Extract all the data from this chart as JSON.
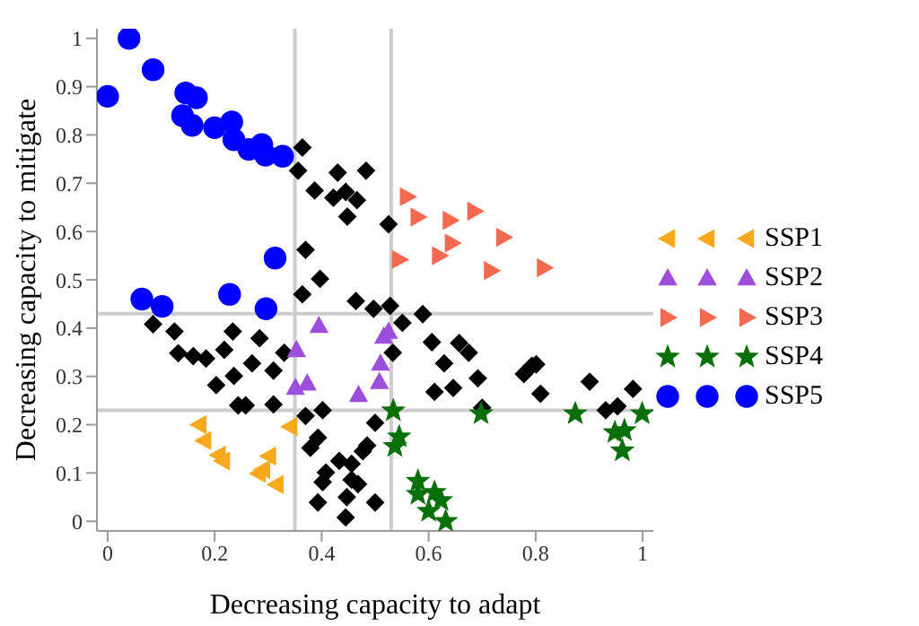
{
  "chart_data": {
    "type": "scatter",
    "xlabel": "Decreasing capacity to adapt",
    "ylabel": "Decreasing capacity to mitigate",
    "xlim": [
      -0.02,
      1.02
    ],
    "ylim": [
      -0.02,
      1.02
    ],
    "xticks": [
      0,
      0.2,
      0.4,
      0.6,
      0.8,
      1
    ],
    "yticks": [
      0,
      0.1,
      0.2,
      0.3,
      0.4,
      0.5,
      0.6,
      0.7,
      0.8,
      0.9,
      1
    ],
    "grid": false,
    "legend": "right",
    "ref_lines": [
      {
        "axis": "x",
        "value": 0.35,
        "color": "#cccccc"
      },
      {
        "axis": "x",
        "value": 0.53,
        "color": "#cccccc"
      },
      {
        "axis": "y",
        "value": 0.23,
        "color": "#cccccc"
      },
      {
        "axis": "y",
        "value": 0.43,
        "color": "#cccccc"
      }
    ],
    "series": [
      {
        "color": "#000000",
        "marker": "diamond",
        "x": [
          0.364,
          0.356,
          0.387,
          0.43,
          0.483,
          0.422,
          0.445,
          0.466,
          0.448,
          0.525,
          0.37,
          0.397,
          0.364,
          0.464,
          0.497,
          0.528,
          0.085,
          0.125,
          0.132,
          0.16,
          0.184,
          0.218,
          0.234,
          0.284,
          0.33,
          0.203,
          0.236,
          0.27,
          0.31,
          0.244,
          0.258,
          0.31,
          0.37,
          0.402,
          0.393,
          0.379,
          0.408,
          0.402,
          0.393,
          0.433,
          0.456,
          0.456,
          0.468,
          0.447,
          0.445,
          0.477,
          0.485,
          0.5,
          0.5,
          0.533,
          0.551,
          0.589,
          0.606,
          0.657,
          0.675,
          0.629,
          0.611,
          0.646,
          0.692,
          0.778,
          0.793,
          0.801,
          0.809,
          0.901,
          0.982,
          0.931,
          0.953,
          0.7
        ],
        "values": [
          0.774,
          0.726,
          0.685,
          0.722,
          0.726,
          0.67,
          0.682,
          0.665,
          0.631,
          0.615,
          0.562,
          0.502,
          0.47,
          0.456,
          0.44,
          0.446,
          0.408,
          0.393,
          0.348,
          0.342,
          0.337,
          0.355,
          0.393,
          0.379,
          0.349,
          0.282,
          0.301,
          0.327,
          0.312,
          0.24,
          0.24,
          0.242,
          0.218,
          0.23,
          0.173,
          0.152,
          0.101,
          0.081,
          0.039,
          0.125,
          0.119,
          0.086,
          0.077,
          0.05,
          0.008,
          0.145,
          0.157,
          0.039,
          0.204,
          0.349,
          0.411,
          0.429,
          0.371,
          0.369,
          0.349,
          0.327,
          0.268,
          0.276,
          0.296,
          0.305,
          0.322,
          0.325,
          0.264,
          0.289,
          0.274,
          0.23,
          0.238,
          0.235
        ]
      },
      {
        "name": "SSP1",
        "color": "#f7a81b",
        "marker": "triangle-left",
        "x": [
          0.171,
          0.18,
          0.207,
          0.215,
          0.301,
          0.29,
          0.282,
          0.315,
          0.341
        ],
        "values": [
          0.2,
          0.167,
          0.137,
          0.125,
          0.135,
          0.107,
          0.099,
          0.076,
          0.196
        ]
      },
      {
        "name": "SSP2",
        "color": "#9d4edd",
        "marker": "triangle",
        "x": [
          0.395,
          0.353,
          0.351,
          0.373,
          0.469,
          0.51,
          0.508,
          0.516,
          0.525
        ],
        "values": [
          0.405,
          0.355,
          0.277,
          0.286,
          0.262,
          0.327,
          0.289,
          0.383,
          0.393
        ]
      },
      {
        "name": "SSP3",
        "color": "#f4694f",
        "marker": "triangle-right",
        "x": [
          0.56,
          0.58,
          0.64,
          0.686,
          0.644,
          0.74,
          0.545,
          0.62,
          0.717,
          0.816
        ],
        "values": [
          0.672,
          0.63,
          0.623,
          0.642,
          0.576,
          0.588,
          0.542,
          0.55,
          0.519,
          0.525
        ]
      },
      {
        "name": "SSP4",
        "color": "#0a700a",
        "marker": "star",
        "x": [
          0.534,
          0.545,
          0.537,
          0.698,
          0.874,
          0.999,
          0.948,
          0.966,
          0.962,
          0.58,
          0.58,
          0.611,
          0.623,
          0.6,
          0.632
        ],
        "values": [
          0.229,
          0.175,
          0.155,
          0.223,
          0.223,
          0.223,
          0.184,
          0.188,
          0.146,
          0.083,
          0.056,
          0.06,
          0.043,
          0.021,
          0.0
        ]
      },
      {
        "name": "SSP5",
        "color": "#0000ff",
        "marker": "circle",
        "x": [
          0.0,
          0.04,
          0.085,
          0.146,
          0.166,
          0.14,
          0.158,
          0.2,
          0.232,
          0.236,
          0.264,
          0.288,
          0.295,
          0.327,
          0.313,
          0.064,
          0.102,
          0.228,
          0.296
        ],
        "values": [
          0.88,
          1.0,
          0.935,
          0.887,
          0.877,
          0.84,
          0.82,
          0.815,
          0.827,
          0.79,
          0.77,
          0.78,
          0.758,
          0.756,
          0.545,
          0.46,
          0.445,
          0.47,
          0.44
        ]
      }
    ]
  }
}
